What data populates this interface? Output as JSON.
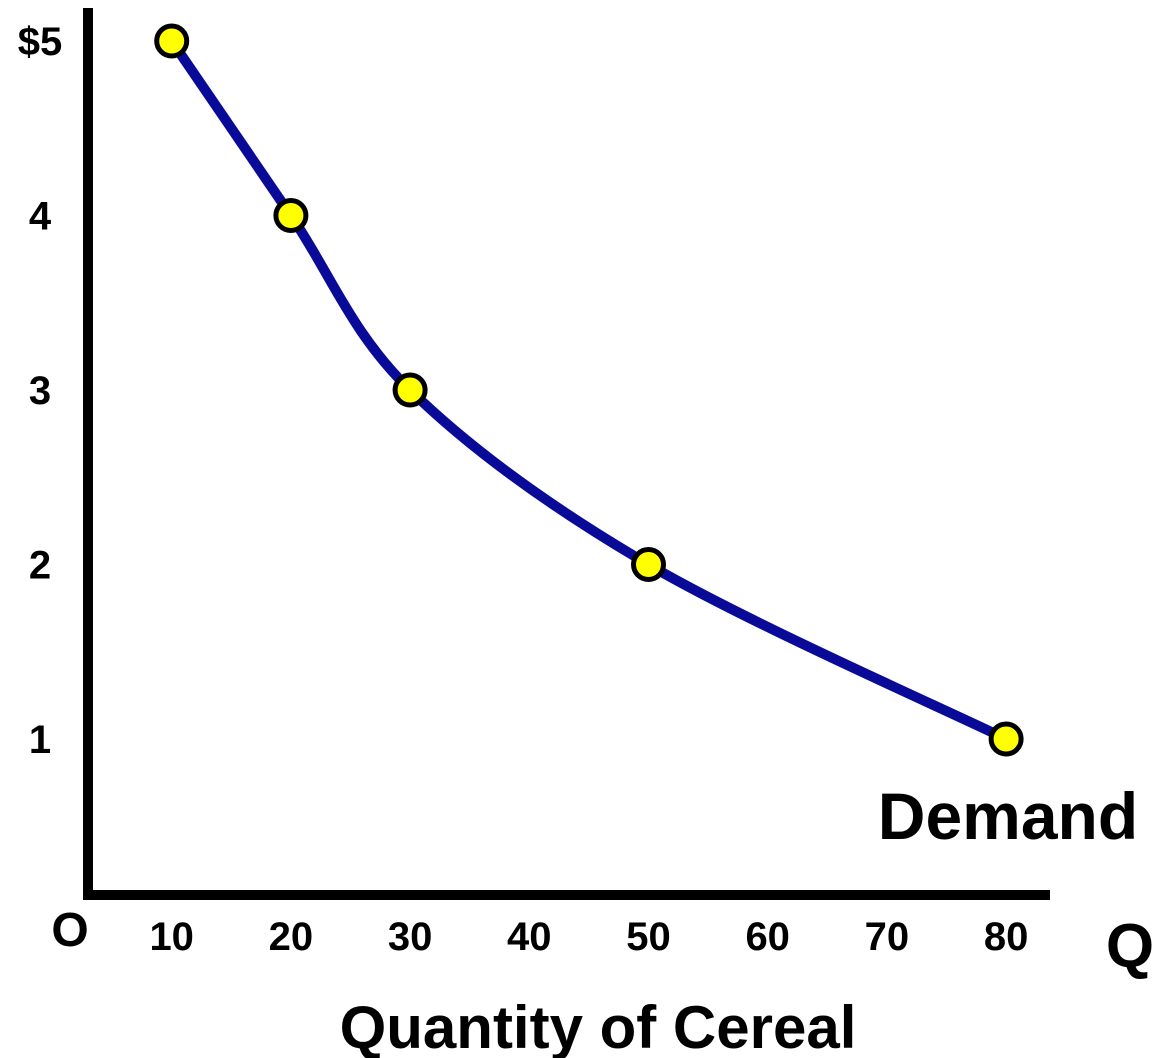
{
  "chart_data": {
    "type": "line",
    "title": "",
    "xlabel": "Quantity of Cereal",
    "ylabel": "",
    "x_axis_symbol": "Q",
    "origin_label": "O",
    "series_label": "Demand",
    "xlim": [
      0,
      80
    ],
    "ylim": [
      0,
      5
    ],
    "x_ticks": [
      {
        "value": 10,
        "label": "10"
      },
      {
        "value": 20,
        "label": "20"
      },
      {
        "value": 30,
        "label": "30"
      },
      {
        "value": 40,
        "label": "40"
      },
      {
        "value": 50,
        "label": "50"
      },
      {
        "value": 60,
        "label": "60"
      },
      {
        "value": 70,
        "label": "70"
      },
      {
        "value": 80,
        "label": "80"
      }
    ],
    "y_ticks": [
      {
        "value": 1,
        "label": "1"
      },
      {
        "value": 2,
        "label": "2"
      },
      {
        "value": 3,
        "label": "3"
      },
      {
        "value": 4,
        "label": "4"
      },
      {
        "value": 5,
        "label": "$5"
      }
    ],
    "grid": false,
    "series": [
      {
        "x": [
          10,
          20,
          30,
          50,
          80
        ],
        "y": [
          5,
          4,
          3,
          2,
          1
        ]
      }
    ],
    "colors": {
      "line": "#0a0a99",
      "marker_fill": "#ffff00",
      "marker_stroke": "#000000",
      "axis": "#000000"
    }
  }
}
